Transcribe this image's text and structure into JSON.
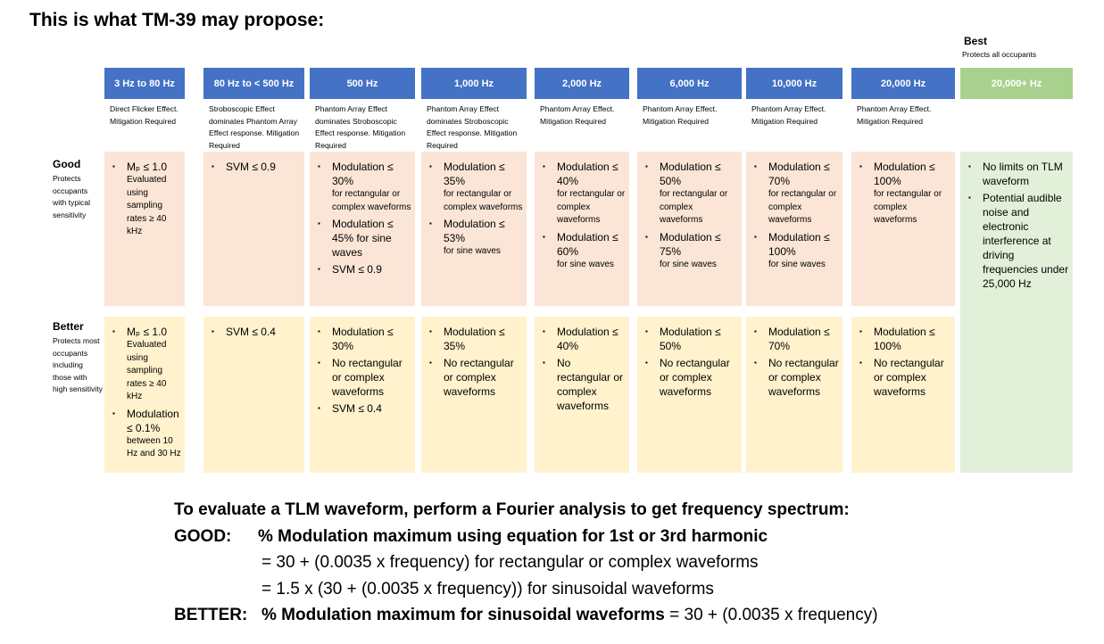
{
  "title": "This is what TM-39 may propose:",
  "best": {
    "label": "Best",
    "sub": "Protects all occupants"
  },
  "columns": [
    {
      "header": "3 Hz to 80 Hz",
      "note": "Direct Flicker Effect. Mitigation Required"
    },
    {
      "header": "80 Hz to < 500 Hz",
      "note": "Stroboscopic Effect dominates Phantom Array Effect response. Mitigation Required"
    },
    {
      "header": "500 Hz",
      "note": "Phantom Array Effect dominates Stroboscopic Effect response. Mitigation Required"
    },
    {
      "header": "1,000 Hz",
      "note": "Phantom Array Effect dominates Stroboscopic Effect response. Mitigation Required"
    },
    {
      "header": "2,000 Hz",
      "note": "Phantom Array Effect. Mitigation Required"
    },
    {
      "header": "6,000 Hz",
      "note": "Phantom Array Effect. Mitigation Required"
    },
    {
      "header": "10,000 Hz",
      "note": "Phantom Array Effect. Mitigation Required"
    },
    {
      "header": "20,000 Hz",
      "note": "Phantom Array Effect. Mitigation Required"
    },
    {
      "header": "20,000+ Hz",
      "note": ""
    }
  ],
  "rows": {
    "good": {
      "label": "Good",
      "desc": "Protects occupants with typical sensitivity"
    },
    "better": {
      "label": "Better",
      "desc": "Protects most occupants including those with high sensitivity"
    }
  },
  "good_cells": [
    [
      {
        "main": "Mₚ ≤ 1.0",
        "sub": "Evaluated using sampling rates ≥ 40 kHz"
      }
    ],
    [
      {
        "main": "SVM ≤ 0.9",
        "sub": ""
      }
    ],
    [
      {
        "main": "Modulation ≤ 30%",
        "sub": "for rectangular or complex waveforms"
      },
      {
        "main": "Modulation ≤ 45% for sine waves",
        "sub": ""
      },
      {
        "main": "SVM ≤ 0.9",
        "sub": ""
      }
    ],
    [
      {
        "main": "Modulation ≤ 35%",
        "sub": "for rectangular or complex waveforms"
      },
      {
        "main": "Modulation ≤ 53%",
        "sub": "for sine waves"
      }
    ],
    [
      {
        "main": "Modulation ≤ 40%",
        "sub": "for rectangular or complex waveforms"
      },
      {
        "main": "Modulation ≤ 60%",
        "sub": "for sine waves"
      }
    ],
    [
      {
        "main": "Modulation ≤ 50%",
        "sub": "for rectangular or complex waveforms"
      },
      {
        "main": "Modulation ≤ 75%",
        "sub": "for sine waves"
      }
    ],
    [
      {
        "main": "Modulation ≤ 70%",
        "sub": "for rectangular or complex waveforms"
      },
      {
        "main": "Modulation ≤ 100%",
        "sub": "for sine waves"
      }
    ],
    [
      {
        "main": "Modulation ≤ 100%",
        "sub": "for rectangular or complex waveforms"
      }
    ]
  ],
  "better_cells": [
    [
      {
        "main": "Mₚ ≤ 1.0",
        "sub": "Evaluated using sampling rates ≥ 40 kHz"
      },
      {
        "main": "Modulation ≤ 0.1%",
        "sub": "between 10 Hz and 30 Hz"
      }
    ],
    [
      {
        "main": "SVM ≤ 0.4",
        "sub": ""
      }
    ],
    [
      {
        "main": "Modulation ≤ 30%",
        "sub": ""
      },
      {
        "main": "No rectangular or complex waveforms",
        "sub": ""
      },
      {
        "main": "SVM ≤ 0.4",
        "sub": ""
      }
    ],
    [
      {
        "main": "Modulation ≤ 35%",
        "sub": ""
      },
      {
        "main": "No rectangular or complex waveforms",
        "sub": ""
      }
    ],
    [
      {
        "main": "Modulation ≤ 40%",
        "sub": ""
      },
      {
        "main": "No rectangular or complex waveforms",
        "sub": ""
      }
    ],
    [
      {
        "main": "Modulation ≤ 50%",
        "sub": ""
      },
      {
        "main": "No rectangular or complex waveforms",
        "sub": ""
      }
    ],
    [
      {
        "main": "Modulation ≤ 70%",
        "sub": ""
      },
      {
        "main": "No rectangular or complex waveforms",
        "sub": ""
      }
    ],
    [
      {
        "main": "Modulation ≤ 100%",
        "sub": ""
      },
      {
        "main": "No rectangular or complex waveforms",
        "sub": ""
      }
    ]
  ],
  "best_cell": [
    {
      "main": "No limits on TLM waveform",
      "sub": ""
    },
    {
      "main": "Potential audible noise and electronic interference at driving frequencies under 25,000 Hz",
      "sub": ""
    }
  ],
  "bottom": {
    "line1": "To evaluate a TLM waveform, perform a Fourier analysis to get frequency spectrum:",
    "good_label": "GOOD:",
    "good_text": "% Modulation maximum using equation for 1st or 3rd harmonic",
    "eq1": "= 30 + (0.0035 x frequency) for rectangular or complex waveforms",
    "eq2": "= 1.5 x (30 + (0.0035 x frequency)) for sinusoidal waveforms",
    "better_label": "BETTER:",
    "better_bold": "% Modulation maximum for sinusoidal waveforms",
    "better_rest": " = 30 + (0.0035 x frequency)"
  },
  "colors": {
    "header_blue": "#4472c4",
    "header_green": "#a9d18e",
    "good_bg": "#fbe5d6",
    "better_bg": "#fff2cc",
    "best_bg": "#e2f0d9"
  },
  "icons": {
    "bullet": "square-bullet-icon"
  }
}
